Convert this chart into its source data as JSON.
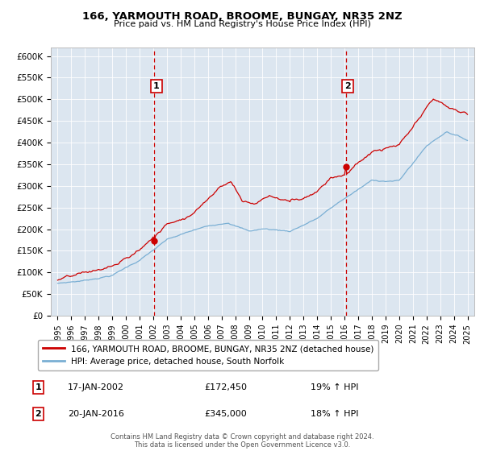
{
  "title": "166, YARMOUTH ROAD, BROOME, BUNGAY, NR35 2NZ",
  "subtitle": "Price paid vs. HM Land Registry's House Price Index (HPI)",
  "background_color": "#dce6f0",
  "plot_bg_color": "#dce6f0",
  "red_line_color": "#cc0000",
  "blue_line_color": "#7aafd4",
  "ylim": [
    0,
    620000
  ],
  "yticks": [
    0,
    50000,
    100000,
    150000,
    200000,
    250000,
    300000,
    350000,
    400000,
    450000,
    500000,
    550000,
    600000
  ],
  "ytick_labels": [
    "£0",
    "£50K",
    "£100K",
    "£150K",
    "£200K",
    "£250K",
    "£300K",
    "£350K",
    "£400K",
    "£450K",
    "£500K",
    "£550K",
    "£600K"
  ],
  "sale1_year": 2002.05,
  "sale1_price": 172450,
  "sale1_label": "1",
  "sale2_year": 2016.05,
  "sale2_price": 345000,
  "sale2_label": "2",
  "legend_line1": "166, YARMOUTH ROAD, BROOME, BUNGAY, NR35 2NZ (detached house)",
  "legend_line2": "HPI: Average price, detached house, South Norfolk",
  "annotation1_num": "1",
  "annotation1_date": "17-JAN-2002",
  "annotation1_price": "£172,450",
  "annotation1_hpi": "19% ↑ HPI",
  "annotation2_num": "2",
  "annotation2_date": "20-JAN-2016",
  "annotation2_price": "£345,000",
  "annotation2_hpi": "18% ↑ HPI",
  "footer": "Contains HM Land Registry data © Crown copyright and database right 2024.\nThis data is licensed under the Open Government Licence v3.0.",
  "xlim_left": 1994.5,
  "xlim_right": 2025.5
}
